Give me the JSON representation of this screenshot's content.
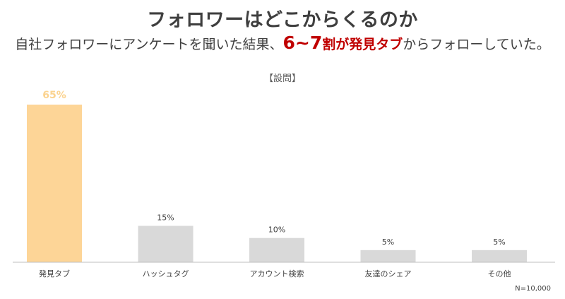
{
  "header": {
    "title": "フォロワーはどこからくるのか",
    "subtitle_prefix": "自社フォロワーにアンケートを聞いた結果、",
    "subtitle_highlight_num": "6~7",
    "subtitle_highlight_text": "割が発見タブ",
    "subtitle_suffix": "からフォローしていた。"
  },
  "question_label": "【設問】",
  "sample_note": "N=10,000",
  "colors": {
    "highlight_bar": "#fdd597",
    "highlight_label": "#fbd38f",
    "default_bar": "#d9d9d9",
    "axis": "#bfbfbf",
    "accent": "#c00000"
  },
  "chart_data": {
    "type": "bar",
    "categories": [
      "発見タブ",
      "ハッシュタグ",
      "アカウント検索",
      "友達のシェア",
      "その他"
    ],
    "values": [
      65,
      15,
      10,
      5,
      5
    ],
    "value_labels": [
      "65%",
      "15%",
      "10%",
      "5%",
      "5%"
    ],
    "highlight_index": 0,
    "unit": "%",
    "ylim": [
      0,
      65
    ],
    "grid": false,
    "legend": "none"
  }
}
